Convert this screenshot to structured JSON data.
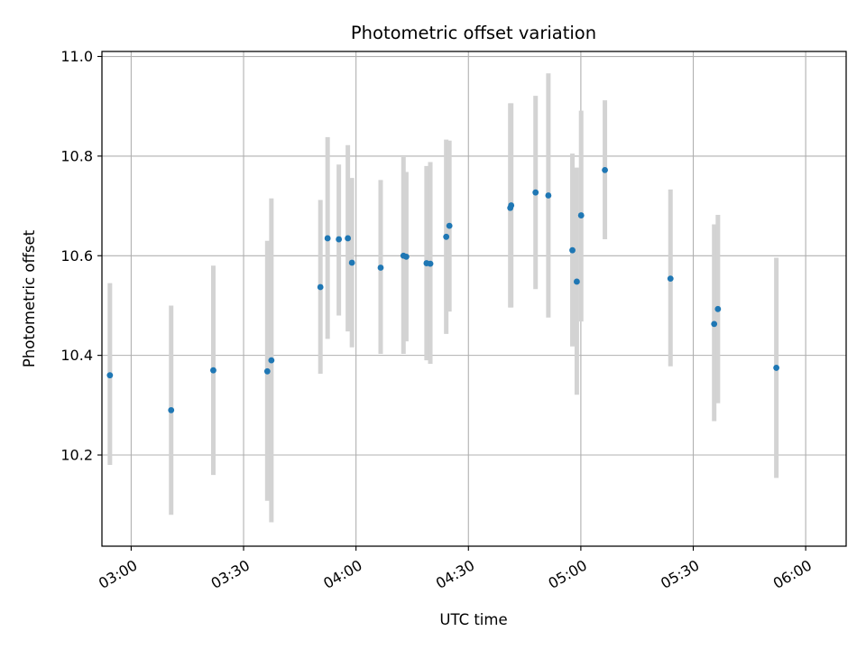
{
  "chart_data": {
    "type": "scatter",
    "title": "Photometric offset variation",
    "xlabel": "UTC time",
    "ylabel": "Photometric offset",
    "x_ticks": [
      "03:00",
      "03:30",
      "04:00",
      "04:30",
      "05:00",
      "05:30",
      "06:00"
    ],
    "x_tick_minutes": [
      180,
      210,
      240,
      270,
      300,
      330,
      360
    ],
    "y_ticks": [
      "10.2",
      "10.4",
      "10.6",
      "10.8",
      "11.0"
    ],
    "y_tick_values": [
      10.2,
      10.4,
      10.6,
      10.8,
      11.0
    ],
    "xlim_minutes": [
      172.2,
      370.8
    ],
    "ylim": [
      10.017,
      11.01
    ],
    "grid": true,
    "marker_color": "#1f77b4",
    "errorbar_color": "#d3d3d3",
    "points": [
      {
        "time": "02:54:20",
        "t": 174.33,
        "y": 10.36,
        "lo": 10.18,
        "hi": 10.545
      },
      {
        "time": "03:10:40",
        "t": 190.67,
        "y": 10.29,
        "lo": 10.08,
        "hi": 10.5
      },
      {
        "time": "03:21:55",
        "t": 201.92,
        "y": 10.37,
        "lo": 10.16,
        "hi": 10.58
      },
      {
        "time": "03:36:20",
        "t": 216.33,
        "y": 10.368,
        "lo": 10.108,
        "hi": 10.63
      },
      {
        "time": "03:37:25",
        "t": 217.42,
        "y": 10.39,
        "lo": 10.065,
        "hi": 10.715
      },
      {
        "time": "03:50:30",
        "t": 230.5,
        "y": 10.537,
        "lo": 10.363,
        "hi": 10.712
      },
      {
        "time": "03:52:25",
        "t": 232.42,
        "y": 10.635,
        "lo": 10.433,
        "hi": 10.838
      },
      {
        "time": "03:55:25",
        "t": 235.42,
        "y": 10.633,
        "lo": 10.48,
        "hi": 10.783
      },
      {
        "time": "03:57:50",
        "t": 237.83,
        "y": 10.635,
        "lo": 10.448,
        "hi": 10.822
      },
      {
        "time": "03:58:55",
        "t": 238.92,
        "y": 10.586,
        "lo": 10.416,
        "hi": 10.756
      },
      {
        "time": "04:06:35",
        "t": 246.58,
        "y": 10.576,
        "lo": 10.403,
        "hi": 10.752
      },
      {
        "time": "04:12:40",
        "t": 252.67,
        "y": 10.6,
        "lo": 10.403,
        "hi": 10.798
      },
      {
        "time": "04:13:25",
        "t": 253.42,
        "y": 10.598,
        "lo": 10.428,
        "hi": 10.768
      },
      {
        "time": "04:18:50",
        "t": 258.83,
        "y": 10.585,
        "lo": 10.39,
        "hi": 10.78
      },
      {
        "time": "04:19:50",
        "t": 259.83,
        "y": 10.584,
        "lo": 10.383,
        "hi": 10.788
      },
      {
        "time": "04:24:05",
        "t": 264.08,
        "y": 10.638,
        "lo": 10.443,
        "hi": 10.833
      },
      {
        "time": "04:24:55",
        "t": 264.92,
        "y": 10.66,
        "lo": 10.488,
        "hi": 10.831
      },
      {
        "time": "04:41:10",
        "t": 281.17,
        "y": 10.696,
        "lo": 10.496,
        "hi": 10.906
      },
      {
        "time": "04:41:25",
        "t": 281.42,
        "y": 10.701,
        "lo": 10.496,
        "hi": 10.906
      },
      {
        "time": "04:47:55",
        "t": 287.92,
        "y": 10.727,
        "lo": 10.533,
        "hi": 10.921
      },
      {
        "time": "04:51:20",
        "t": 291.33,
        "y": 10.721,
        "lo": 10.476,
        "hi": 10.966
      },
      {
        "time": "04:57:45",
        "t": 297.75,
        "y": 10.611,
        "lo": 10.418,
        "hi": 10.805
      },
      {
        "time": "04:58:55",
        "t": 298.92,
        "y": 10.548,
        "lo": 10.321,
        "hi": 10.777
      },
      {
        "time": "05:00:05",
        "t": 300.08,
        "y": 10.681,
        "lo": 10.468,
        "hi": 10.891
      },
      {
        "time": "05:06:25",
        "t": 306.42,
        "y": 10.772,
        "lo": 10.633,
        "hi": 10.912
      },
      {
        "time": "05:23:55",
        "t": 323.92,
        "y": 10.554,
        "lo": 10.378,
        "hi": 10.733
      },
      {
        "time": "05:35:35",
        "t": 335.58,
        "y": 10.463,
        "lo": 10.268,
        "hi": 10.663
      },
      {
        "time": "05:36:35",
        "t": 336.58,
        "y": 10.493,
        "lo": 10.304,
        "hi": 10.682
      },
      {
        "time": "05:52:10",
        "t": 352.17,
        "y": 10.375,
        "lo": 10.154,
        "hi": 10.596
      }
    ]
  }
}
